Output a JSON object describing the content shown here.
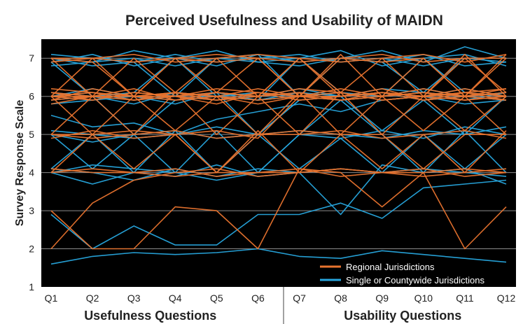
{
  "chart_data": {
    "type": "line",
    "title": "Perceived Usefulness and Usability of MAIDN",
    "ylabel": "Survey Response Scale",
    "ylim": [
      1,
      7.5
    ],
    "yticks": [
      1,
      2,
      3,
      4,
      5,
      6,
      7
    ],
    "grid": true,
    "categories": [
      "Q1",
      "Q2",
      "Q3",
      "Q4",
      "Q5",
      "Q6",
      "Q7",
      "Q8",
      "Q9",
      "Q10",
      "Q11",
      "Q12"
    ],
    "groups": [
      {
        "label": "Usefulness Questions",
        "from": 0,
        "to": 5
      },
      {
        "label": "Usability Questions",
        "from": 6,
        "to": 11
      }
    ],
    "legend": {
      "placement": "bottom-right",
      "entries": [
        {
          "name": "Regional Jurisdictions",
          "color": "#E8732E"
        },
        {
          "name": "Single or Countywide Jurisdictions",
          "color": "#27A6DE"
        }
      ]
    },
    "colors": {
      "background": "#000000",
      "grid": "#8c8c8c",
      "regional": "#E8732E",
      "single": "#27A6DE"
    },
    "series": [
      {
        "group": "single",
        "values": [
          1.6,
          1.8,
          1.9,
          1.85,
          1.9,
          2.0,
          1.8,
          1.75,
          1.95,
          1.85,
          1.75,
          1.65
        ]
      },
      {
        "group": "single",
        "values": [
          2.9,
          2.0,
          2.6,
          2.1,
          2.1,
          2.9,
          2.9,
          3.2,
          2.8,
          3.6,
          3.7,
          3.8
        ]
      },
      {
        "group": "single",
        "values": [
          4.0,
          3.7,
          4.0,
          3.9,
          4.2,
          3.9,
          4.0,
          4.1,
          4.0,
          4.1,
          4.0,
          3.9
        ]
      },
      {
        "group": "single",
        "values": [
          4.1,
          4.0,
          3.8,
          4.1,
          3.9,
          4.1,
          4.0,
          2.9,
          4.2,
          4.0,
          4.1,
          3.7
        ]
      },
      {
        "group": "single",
        "values": [
          4.0,
          4.2,
          4.1,
          4.0,
          3.8,
          4.0,
          5.0,
          4.9,
          5.1,
          4.9,
          5.2,
          5.0
        ]
      },
      {
        "group": "single",
        "values": [
          5.0,
          4.8,
          5.0,
          5.1,
          4.9,
          5.0,
          5.1,
          5.0,
          4.9,
          5.1,
          5.0,
          5.2
        ]
      },
      {
        "group": "single",
        "values": [
          5.1,
          5.0,
          4.9,
          5.0,
          5.2,
          5.0,
          5.9,
          6.0,
          6.1,
          5.9,
          6.0,
          6.1
        ]
      },
      {
        "group": "single",
        "values": [
          5.5,
          5.2,
          5.3,
          5.0,
          5.4,
          5.6,
          5.8,
          5.6,
          5.9,
          6.0,
          5.8,
          5.9
        ]
      },
      {
        "group": "single",
        "values": [
          6.0,
          5.9,
          6.1,
          6.0,
          5.9,
          6.0,
          6.1,
          5.9,
          6.0,
          6.2,
          6.0,
          5.9
        ]
      },
      {
        "group": "single",
        "values": [
          6.1,
          6.0,
          5.8,
          6.1,
          6.0,
          5.9,
          6.0,
          6.1,
          5.9,
          6.0,
          6.2,
          6.0
        ]
      },
      {
        "group": "single",
        "values": [
          6.0,
          6.2,
          6.0,
          5.8,
          6.1,
          6.0,
          6.2,
          6.0,
          6.1,
          5.9,
          6.0,
          6.1
        ]
      },
      {
        "group": "single",
        "values": [
          6.8,
          6.9,
          7.0,
          6.8,
          7.0,
          6.9,
          6.8,
          7.0,
          6.9,
          7.1,
          6.8,
          6.9
        ]
      },
      {
        "group": "single",
        "values": [
          7.0,
          6.8,
          6.9,
          7.1,
          6.9,
          7.0,
          7.1,
          6.9,
          7.0,
          6.8,
          7.0,
          7.0
        ]
      },
      {
        "group": "single",
        "values": [
          6.9,
          7.1,
          6.8,
          7.0,
          7.2,
          6.9,
          7.0,
          7.2,
          6.8,
          7.0,
          7.1,
          6.8
        ]
      },
      {
        "group": "single",
        "values": [
          7.0,
          6.9,
          7.2,
          7.0,
          6.8,
          7.1,
          6.9,
          7.0,
          7.2,
          6.9,
          7.3,
          7.0
        ]
      },
      {
        "group": "single",
        "values": [
          5.9,
          6.0,
          5.0,
          5.9,
          6.1,
          5.0,
          5.9,
          6.0,
          5.1,
          5.9,
          5.0,
          6.0
        ]
      },
      {
        "group": "single",
        "values": [
          6.9,
          6.0,
          6.1,
          7.0,
          6.0,
          5.9,
          7.0,
          6.1,
          6.0,
          7.0,
          6.1,
          6.0
        ]
      },
      {
        "group": "single",
        "values": [
          4.1,
          5.0,
          4.0,
          5.1,
          4.0,
          5.0,
          4.1,
          4.9,
          4.0,
          5.0,
          4.1,
          5.0
        ]
      },
      {
        "group": "single",
        "values": [
          6.0,
          6.1,
          5.9,
          6.0,
          6.1,
          5.9,
          6.1,
          6.0,
          6.2,
          6.1,
          5.9,
          6.1
        ]
      },
      {
        "group": "single",
        "values": [
          5.8,
          5.9,
          6.0,
          5.9,
          6.0,
          6.1,
          6.0,
          5.9,
          6.0,
          6.1,
          6.0,
          5.9
        ]
      },
      {
        "group": "single",
        "values": [
          7.1,
          7.0,
          6.9,
          6.0,
          7.0,
          7.1,
          6.0,
          7.0,
          6.9,
          6.1,
          7.0,
          6.9
        ]
      },
      {
        "group": "single",
        "values": [
          5.0,
          4.1,
          5.0,
          4.0,
          5.1,
          4.0,
          5.0,
          5.9,
          5.0,
          4.0,
          5.1,
          4.0
        ]
      },
      {
        "group": "regional",
        "values": [
          3.0,
          2.0,
          2.0,
          3.1,
          3.0,
          2.0,
          4.1,
          4.0,
          3.1,
          4.0,
          2.0,
          3.1
        ]
      },
      {
        "group": "regional",
        "values": [
          2.0,
          3.2,
          3.8,
          4.0,
          4.1,
          3.9,
          4.0,
          4.1,
          4.0,
          3.9,
          4.0,
          4.1
        ]
      },
      {
        "group": "regional",
        "values": [
          4.0,
          4.1,
          4.0,
          3.9,
          4.0,
          4.0,
          4.1,
          3.9,
          4.0,
          4.1,
          3.9,
          4.0
        ]
      },
      {
        "group": "regional",
        "values": [
          5.0,
          4.9,
          5.0,
          5.1,
          4.9,
          5.0,
          5.0,
          5.1,
          4.9,
          5.0,
          5.1,
          4.9
        ]
      },
      {
        "group": "regional",
        "values": [
          4.9,
          5.1,
          4.9,
          5.0,
          5.1,
          4.9,
          6.0,
          5.9,
          6.0,
          6.1,
          5.9,
          6.0
        ]
      },
      {
        "group": "regional",
        "values": [
          5.8,
          6.0,
          5.9,
          6.1,
          6.0,
          5.8,
          6.0,
          6.1,
          5.9,
          6.0,
          6.1,
          6.0
        ]
      },
      {
        "group": "regional",
        "values": [
          6.0,
          5.9,
          6.1,
          6.0,
          5.9,
          6.1,
          5.9,
          6.0,
          6.1,
          5.9,
          6.0,
          6.1
        ]
      },
      {
        "group": "regional",
        "values": [
          6.1,
          6.0,
          6.0,
          5.9,
          6.1,
          6.0,
          6.1,
          5.9,
          6.0,
          6.1,
          6.0,
          5.9
        ]
      },
      {
        "group": "regional",
        "values": [
          6.2,
          6.1,
          5.9,
          6.0,
          6.2,
          6.1,
          5.9,
          6.0,
          6.2,
          5.9,
          6.1,
          6.2
        ]
      },
      {
        "group": "regional",
        "values": [
          5.9,
          6.2,
          6.0,
          6.1,
          5.9,
          6.0,
          6.2,
          6.1,
          5.9,
          6.0,
          6.2,
          6.0
        ]
      },
      {
        "group": "regional",
        "values": [
          6.0,
          6.0,
          6.2,
          5.9,
          6.0,
          6.2,
          6.0,
          6.2,
          6.0,
          6.2,
          6.0,
          6.2
        ]
      },
      {
        "group": "regional",
        "values": [
          7.0,
          7.0,
          6.9,
          7.0,
          7.1,
          7.0,
          6.9,
          7.0,
          7.1,
          6.9,
          7.0,
          7.0
        ]
      },
      {
        "group": "regional",
        "values": [
          6.9,
          7.0,
          7.1,
          6.9,
          7.0,
          7.1,
          7.0,
          6.9,
          7.0,
          7.1,
          6.9,
          7.1
        ]
      },
      {
        "group": "regional",
        "values": [
          7.0,
          6.0,
          7.0,
          6.1,
          7.0,
          6.0,
          7.0,
          6.1,
          7.0,
          6.0,
          7.1,
          6.0
        ]
      },
      {
        "group": "regional",
        "values": [
          6.0,
          5.0,
          6.0,
          5.1,
          6.0,
          5.0,
          6.1,
          5.0,
          6.0,
          5.1,
          6.0,
          5.0
        ]
      },
      {
        "group": "regional",
        "values": [
          5.0,
          6.0,
          5.0,
          6.1,
          5.0,
          6.0,
          5.0,
          6.1,
          5.0,
          6.0,
          5.1,
          6.0
        ]
      },
      {
        "group": "regional",
        "values": [
          4.0,
          5.0,
          4.1,
          5.0,
          4.0,
          5.1,
          4.0,
          5.0,
          4.1,
          5.0,
          4.0,
          5.1
        ]
      },
      {
        "group": "regional",
        "values": [
          6.0,
          7.0,
          6.0,
          7.0,
          6.1,
          7.0,
          6.0,
          7.1,
          6.0,
          7.0,
          6.0,
          7.1
        ]
      },
      {
        "group": "regional",
        "values": [
          5.9,
          6.0,
          6.0,
          6.1,
          6.0,
          5.9,
          6.0,
          6.0,
          6.1,
          6.0,
          5.9,
          6.0
        ]
      },
      {
        "group": "regional",
        "values": [
          6.1,
          5.9,
          6.1,
          6.0,
          5.8,
          6.1,
          6.0,
          5.9,
          6.1,
          6.0,
          6.1,
          5.9
        ]
      },
      {
        "group": "regional",
        "values": [
          7.0,
          6.9,
          6.0,
          7.0,
          6.9,
          7.0,
          6.0,
          7.0,
          6.9,
          7.0,
          6.0,
          7.0
        ]
      },
      {
        "group": "regional",
        "values": [
          5.0,
          5.0,
          5.1,
          5.0,
          4.0,
          5.0,
          5.1,
          5.0,
          5.0,
          4.1,
          5.0,
          5.0
        ]
      },
      {
        "group": "regional",
        "values": [
          4.1,
          4.0,
          4.0,
          4.1,
          3.9,
          4.0,
          4.0,
          4.1,
          4.0,
          4.0,
          4.1,
          4.0
        ]
      },
      {
        "group": "regional",
        "values": [
          6.0,
          6.1,
          6.0,
          6.0,
          6.1,
          6.0,
          7.0,
          6.0,
          6.1,
          6.0,
          7.0,
          6.1
        ]
      }
    ]
  }
}
